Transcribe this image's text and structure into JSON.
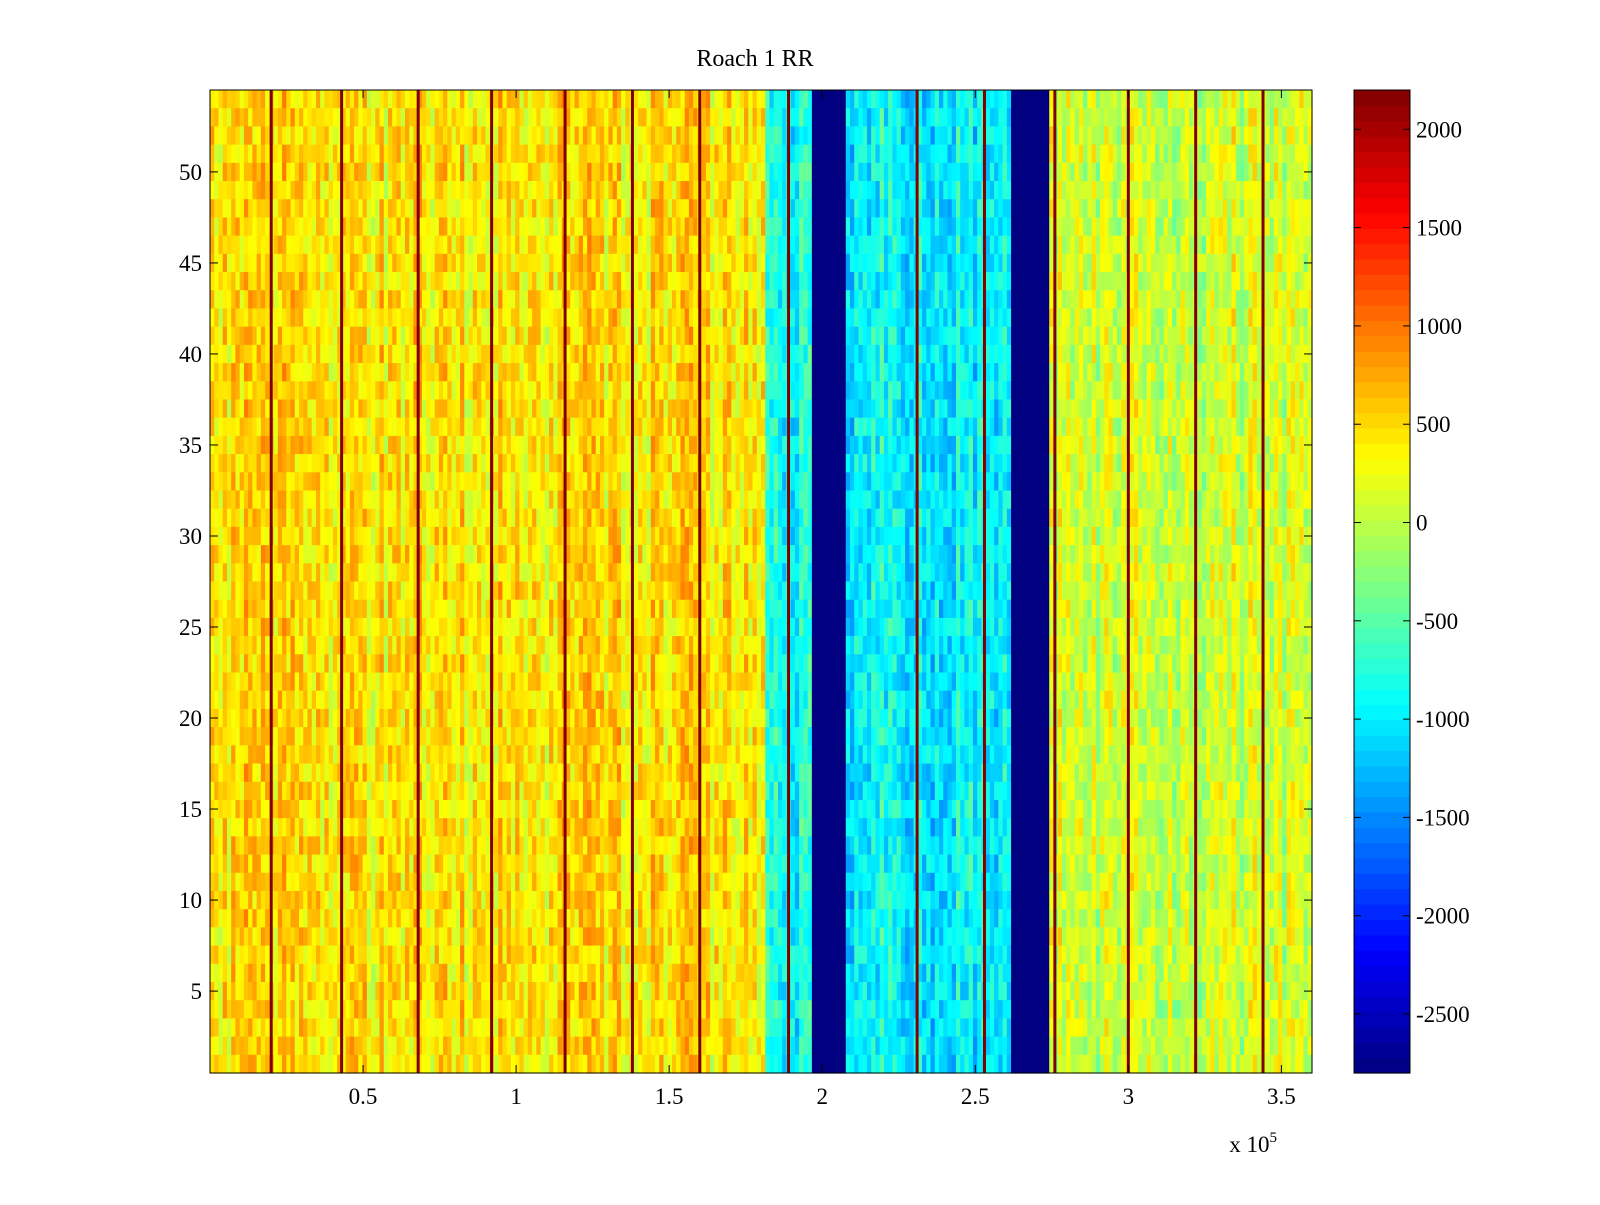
{
  "chart_data": {
    "type": "heatmap",
    "title": "Roach 1 RR",
    "xlabel": "",
    "ylabel": "",
    "xlim": [
      0,
      360000
    ],
    "ylim": [
      0.5,
      54.5
    ],
    "x_scale_label": "x 10",
    "x_scale_exponent": "5",
    "x_ticks": [
      {
        "value": 50000,
        "label": "0.5"
      },
      {
        "value": 100000,
        "label": "1"
      },
      {
        "value": 150000,
        "label": "1.5"
      },
      {
        "value": 200000,
        "label": "2"
      },
      {
        "value": 250000,
        "label": "2.5"
      },
      {
        "value": 300000,
        "label": "3"
      },
      {
        "value": 350000,
        "label": "3.5"
      }
    ],
    "y_ticks": [
      {
        "value": 5,
        "label": "5"
      },
      {
        "value": 10,
        "label": "10"
      },
      {
        "value": 15,
        "label": "15"
      },
      {
        "value": 20,
        "label": "20"
      },
      {
        "value": 25,
        "label": "25"
      },
      {
        "value": 30,
        "label": "30"
      },
      {
        "value": 35,
        "label": "35"
      },
      {
        "value": 40,
        "label": "40"
      },
      {
        "value": 45,
        "label": "45"
      },
      {
        "value": 50,
        "label": "50"
      }
    ],
    "colorbar": {
      "colormap": "jet",
      "clim": [
        -2800,
        2200
      ],
      "ticks": [
        {
          "value": 2000,
          "label": "2000"
        },
        {
          "value": 1500,
          "label": "1500"
        },
        {
          "value": 1000,
          "label": "1000"
        },
        {
          "value": 500,
          "label": "500"
        },
        {
          "value": 0,
          "label": "0"
        },
        {
          "value": -500,
          "label": "-500"
        },
        {
          "value": -1000,
          "label": "-1000"
        },
        {
          "value": -1500,
          "label": "-1500"
        },
        {
          "value": -2000,
          "label": "-2000"
        },
        {
          "value": -2500,
          "label": "-2500"
        }
      ]
    },
    "rows": 54,
    "regions": [
      {
        "x_start": 0,
        "x_end": 182000,
        "mean_value": 450,
        "description": "mostly yellow/orange"
      },
      {
        "x_start": 182000,
        "x_end": 197000,
        "mean_value": -900,
        "description": "cyan/light blue"
      },
      {
        "x_start": 197000,
        "x_end": 208000,
        "mean_value": -2800,
        "description": "dark blue gap"
      },
      {
        "x_start": 208000,
        "x_end": 262000,
        "mean_value": -950,
        "description": "cyan/light blue"
      },
      {
        "x_start": 262000,
        "x_end": 274000,
        "mean_value": -2800,
        "description": "dark blue gap"
      },
      {
        "x_start": 274000,
        "x_end": 360000,
        "mean_value": 100,
        "description": "mixed green/yellow/orange"
      }
    ],
    "dark_lines_x": [
      20000,
      43000,
      68000,
      92000,
      116000,
      138000,
      160000,
      189000,
      231000,
      253000,
      276000,
      300000,
      322000,
      344000
    ]
  }
}
